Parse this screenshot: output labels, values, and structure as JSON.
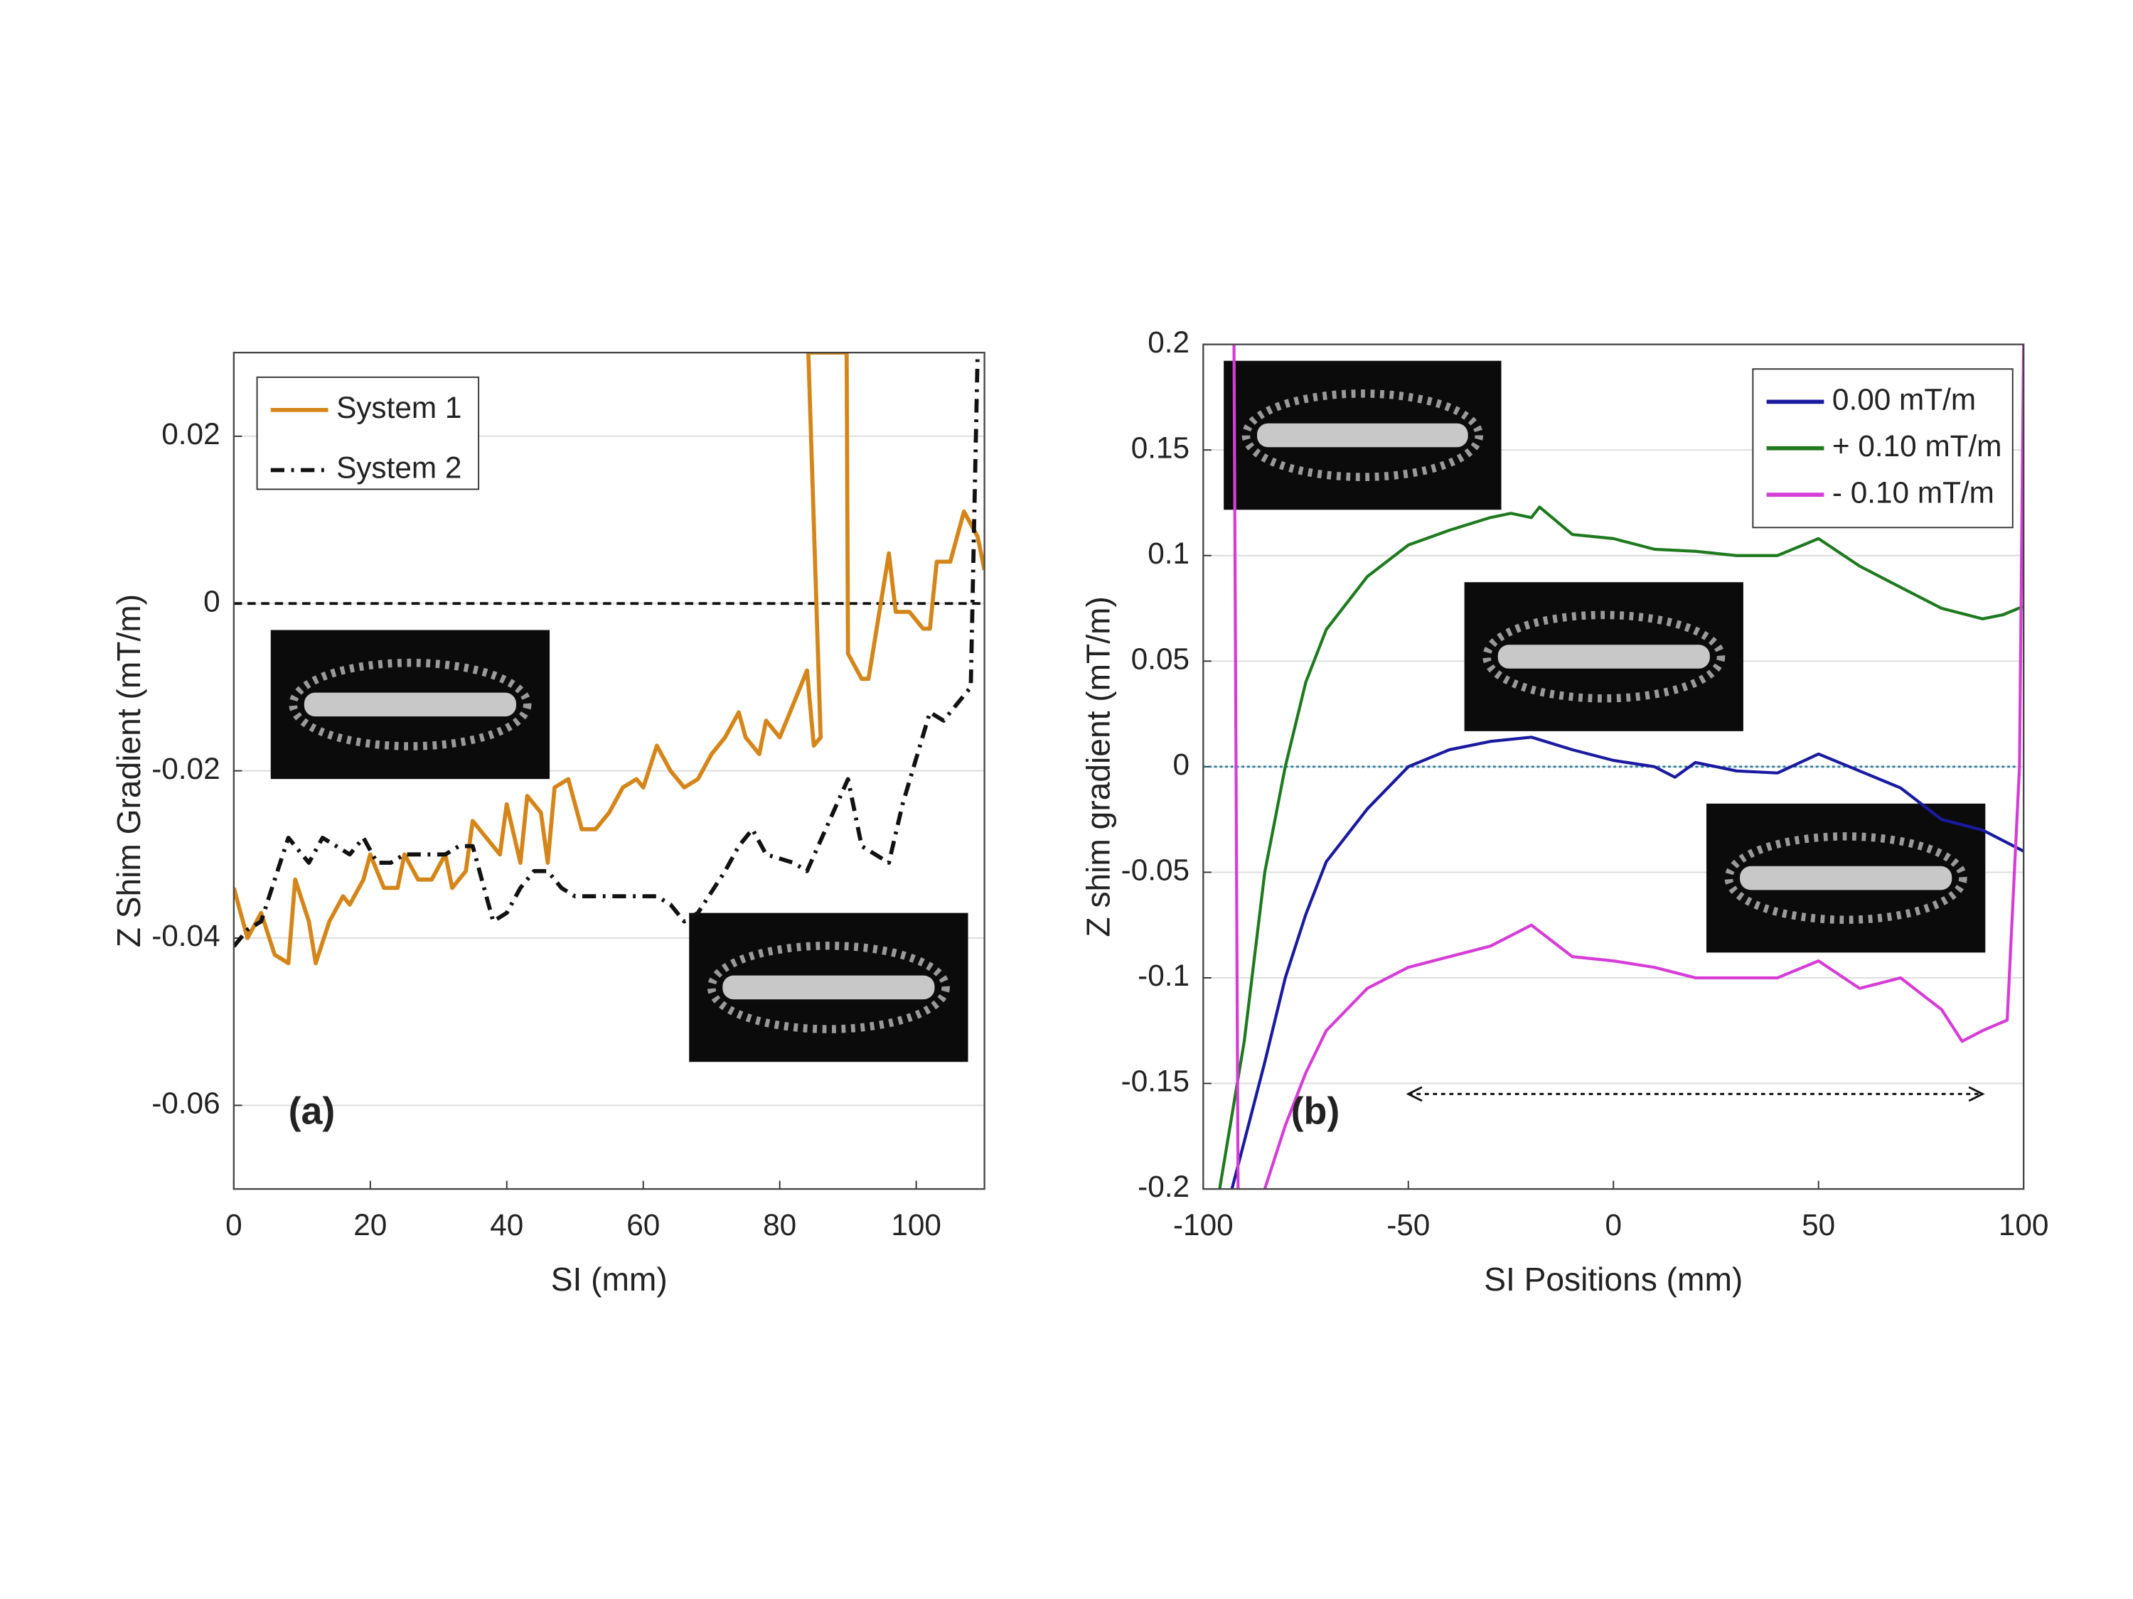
{
  "chart_data": [
    {
      "type": "line",
      "xlabel": "SI (mm)",
      "ylabel": "Z Shim Gradient (mT/m)",
      "annotation": "(a)",
      "xlim": [
        0,
        110
      ],
      "ylim": [
        -0.07,
        0.03
      ],
      "xticks": [
        0,
        20,
        40,
        60,
        80,
        100
      ],
      "yticks": [
        -0.06,
        -0.04,
        -0.02,
        0,
        0.02
      ],
      "grid": true,
      "legend": "upper left",
      "reference_line": 0,
      "reference_style": "dashed",
      "series": [
        {
          "name": "System 1",
          "color": "#d4861a",
          "linestyle": "solid",
          "x": [
            0,
            2,
            4,
            6,
            8,
            9,
            11,
            12,
            14,
            16,
            17,
            19,
            20,
            22,
            24,
            25,
            27,
            29,
            31,
            32,
            34,
            35,
            37,
            39,
            40,
            42,
            43,
            45,
            46,
            47,
            49,
            51,
            53,
            55,
            57,
            59,
            60,
            62,
            64,
            66,
            68,
            70,
            72,
            74,
            75,
            77,
            78,
            80,
            82,
            84,
            85,
            86,
            84.2,
            89.8,
            90,
            92,
            93,
            96,
            97,
            99,
            101,
            102,
            103,
            105,
            107,
            109,
            110
          ],
          "values": [
            -0.034,
            -0.04,
            -0.037,
            -0.042,
            -0.043,
            -0.033,
            -0.038,
            -0.043,
            -0.038,
            -0.035,
            -0.036,
            -0.033,
            -0.03,
            -0.034,
            -0.034,
            -0.03,
            -0.033,
            -0.033,
            -0.03,
            -0.034,
            -0.032,
            -0.026,
            -0.028,
            -0.03,
            -0.024,
            -0.031,
            -0.023,
            -0.025,
            -0.031,
            -0.022,
            -0.021,
            -0.027,
            -0.027,
            -0.025,
            -0.022,
            -0.021,
            -0.022,
            -0.017,
            -0.02,
            -0.022,
            -0.021,
            -0.018,
            -0.016,
            -0.013,
            -0.016,
            -0.018,
            -0.014,
            -0.016,
            -0.012,
            -0.008,
            -0.017,
            -0.016,
            0.03,
            0.03,
            -0.006,
            -0.009,
            -0.009,
            0.006,
            -0.001,
            -0.001,
            -0.003,
            -0.003,
            0.005,
            0.005,
            0.011,
            0.008,
            0.004
          ]
        },
        {
          "name": "System 2",
          "color": "#111111",
          "linestyle": "dashdot",
          "x": [
            0,
            2,
            4,
            6,
            8,
            10,
            11,
            13,
            15,
            17,
            19,
            21,
            23,
            25,
            27,
            31,
            33,
            35,
            37,
            38,
            40,
            42,
            44,
            46,
            48,
            50,
            54,
            60,
            62,
            64,
            66,
            68,
            72,
            74,
            76,
            78,
            82,
            84,
            90,
            92,
            96,
            98,
            102,
            104,
            106,
            108,
            109
          ],
          "values": [
            -0.041,
            -0.039,
            -0.038,
            -0.033,
            -0.028,
            -0.03,
            -0.031,
            -0.028,
            -0.029,
            -0.03,
            -0.028,
            -0.031,
            -0.031,
            -0.03,
            -0.03,
            -0.03,
            -0.029,
            -0.029,
            -0.035,
            -0.038,
            -0.037,
            -0.034,
            -0.032,
            -0.032,
            -0.034,
            -0.035,
            -0.035,
            -0.035,
            -0.035,
            -0.036,
            -0.038,
            -0.037,
            -0.032,
            -0.029,
            -0.027,
            -0.03,
            -0.031,
            -0.032,
            -0.021,
            -0.029,
            -0.031,
            -0.024,
            -0.013,
            -0.014,
            -0.012,
            -0.01,
            0.03
          ]
        }
      ]
    },
    {
      "type": "line",
      "xlabel": "SI Positions (mm)",
      "ylabel": "Z shim gradient (mT/m)",
      "annotation": "(b)",
      "xlim": [
        -100,
        100
      ],
      "ylim": [
        -0.2,
        0.2
      ],
      "xticks": [
        -100,
        -50,
        0,
        50,
        100
      ],
      "yticks": [
        -0.2,
        -0.15,
        -0.1,
        -0.05,
        0,
        0.05,
        0.1,
        0.15,
        0.2
      ],
      "grid": true,
      "legend": "upper right",
      "reference_line": 0,
      "reference_style": "dotted",
      "arrow": {
        "x": [
          -50,
          90
        ],
        "y": -0.155
      },
      "series": [
        {
          "name": "0.00 mT/m",
          "color": "#1a1aa0",
          "linestyle": "solid",
          "x": [
            -93,
            -85,
            -80,
            -75,
            -70,
            -60,
            -50,
            -40,
            -30,
            -20,
            -10,
            0,
            10,
            15,
            20,
            30,
            40,
            50,
            60,
            70,
            80,
            90,
            100
          ],
          "values": [
            -0.2,
            -0.14,
            -0.1,
            -0.07,
            -0.045,
            -0.02,
            0.0,
            0.008,
            0.012,
            0.014,
            0.008,
            0.003,
            0.0,
            -0.005,
            0.002,
            -0.002,
            -0.003,
            0.006,
            -0.002,
            -0.01,
            -0.025,
            -0.03,
            -0.04
          ]
        },
        {
          "name": "+ 0.10 mT/m",
          "color": "#1f7a1f",
          "linestyle": "solid",
          "x": [
            -96,
            -90,
            -85,
            -80,
            -75,
            -70,
            -60,
            -50,
            -40,
            -30,
            -25,
            -20,
            -18,
            -10,
            0,
            10,
            20,
            30,
            40,
            50,
            60,
            70,
            80,
            90,
            95,
            100
          ],
          "values": [
            -0.2,
            -0.13,
            -0.05,
            0.0,
            0.04,
            0.065,
            0.09,
            0.105,
            0.112,
            0.118,
            0.12,
            0.118,
            0.123,
            0.11,
            0.108,
            0.103,
            0.102,
            0.1,
            0.1,
            0.108,
            0.095,
            0.085,
            0.075,
            0.07,
            0.072,
            0.076
          ]
        },
        {
          "name": "- 0.10 mT/m",
          "color": "#d63cd6",
          "linestyle": "solid",
          "x": [
            -92.5,
            -91.5,
            null,
            -85,
            -80,
            -75,
            -70,
            -60,
            -50,
            -40,
            -30,
            -20,
            -10,
            0,
            10,
            20,
            30,
            40,
            50,
            60,
            70,
            80,
            85,
            90,
            96,
            99,
            100
          ],
          "values": [
            0.2,
            -0.2,
            null,
            -0.2,
            -0.17,
            -0.145,
            -0.125,
            -0.105,
            -0.095,
            -0.09,
            -0.085,
            -0.075,
            -0.09,
            -0.092,
            -0.095,
            -0.1,
            -0.1,
            -0.1,
            -0.092,
            -0.105,
            -0.1,
            -0.115,
            -0.13,
            -0.125,
            -0.12,
            0.0,
            0.2
          ]
        }
      ]
    }
  ]
}
